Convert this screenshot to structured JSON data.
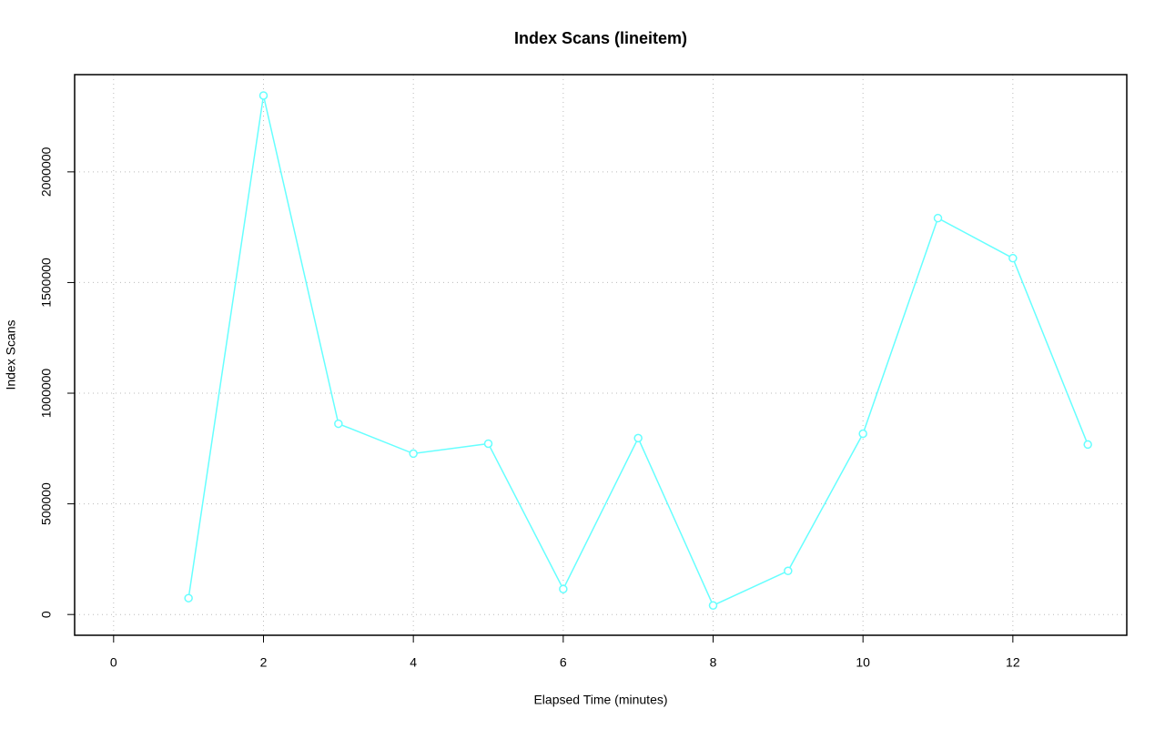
{
  "chart_data": {
    "type": "line",
    "title": "Index Scans (lineitem)",
    "x_label": "Elapsed Time (minutes)",
    "y_label": "Index Scans",
    "x": [
      1,
      2,
      3,
      4,
      5,
      6,
      7,
      8,
      9,
      10,
      11,
      12,
      13
    ],
    "series": [
      {
        "color": "#66ffff",
        "values": [
          74000,
          2345000,
          862000,
          727000,
          772000,
          115000,
          797000,
          41000,
          197000,
          817000,
          1791000,
          1610000,
          768000
        ]
      }
    ],
    "xlim": [
      -0.52,
      13.52
    ],
    "xticks": [
      0,
      2,
      4,
      6,
      8,
      10,
      12
    ],
    "ylim": [
      -93800,
      2439400
    ],
    "yticks": [
      0,
      500000,
      1000000,
      1500000,
      2000000
    ],
    "grid": true
  }
}
